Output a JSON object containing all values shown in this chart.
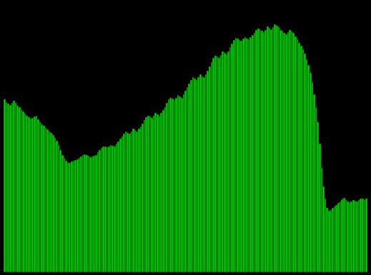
{
  "background_color": "#000000",
  "bar_color": "#00CC00",
  "bar_edge_color": "#000000",
  "ylim": [
    0,
    4400000
  ],
  "values": [
    2820000,
    2780000,
    2750000,
    2730000,
    2760000,
    2800000,
    2760000,
    2720000,
    2690000,
    2650000,
    2620000,
    2590000,
    2560000,
    2530000,
    2510000,
    2520000,
    2540000,
    2560000,
    2500000,
    2450000,
    2420000,
    2390000,
    2360000,
    2330000,
    2300000,
    2270000,
    2240000,
    2200000,
    2150000,
    2080000,
    2000000,
    1920000,
    1860000,
    1820000,
    1800000,
    1790000,
    1810000,
    1820000,
    1830000,
    1850000,
    1870000,
    1890000,
    1910000,
    1930000,
    1920000,
    1900000,
    1880000,
    1890000,
    1900000,
    1920000,
    1960000,
    2000000,
    2030000,
    2060000,
    2050000,
    2040000,
    2060000,
    2080000,
    2070000,
    2060000,
    2100000,
    2140000,
    2180000,
    2220000,
    2260000,
    2300000,
    2280000,
    2260000,
    2300000,
    2340000,
    2320000,
    2300000,
    2340000,
    2380000,
    2430000,
    2480000,
    2530000,
    2560000,
    2540000,
    2520000,
    2560000,
    2600000,
    2580000,
    2560000,
    2600000,
    2650000,
    2700000,
    2760000,
    2820000,
    2850000,
    2830000,
    2810000,
    2850000,
    2890000,
    2870000,
    2850000,
    2900000,
    2960000,
    3020000,
    3080000,
    3140000,
    3180000,
    3160000,
    3140000,
    3180000,
    3230000,
    3200000,
    3180000,
    3230000,
    3290000,
    3360000,
    3430000,
    3500000,
    3540000,
    3520000,
    3500000,
    3550000,
    3600000,
    3580000,
    3560000,
    3610000,
    3670000,
    3730000,
    3790000,
    3830000,
    3810000,
    3790000,
    3780000,
    3810000,
    3840000,
    3820000,
    3800000,
    3840000,
    3870000,
    3910000,
    3950000,
    3980000,
    3960000,
    3940000,
    3920000,
    3960000,
    4010000,
    3990000,
    3970000,
    4000000,
    4050000,
    4020000,
    4000000,
    3960000,
    3940000,
    3910000,
    3890000,
    3920000,
    3950000,
    3930000,
    3910000,
    3850000,
    3800000,
    3750000,
    3700000,
    3640000,
    3570000,
    3480000,
    3380000,
    3250000,
    3100000,
    2900000,
    2700000,
    2450000,
    2100000,
    1700000,
    1400000,
    1200000,
    1050000,
    1000000,
    1020000,
    1050000,
    1080000,
    1100000,
    1130000,
    1160000,
    1190000,
    1210000,
    1180000,
    1160000,
    1140000,
    1160000,
    1180000,
    1170000,
    1160000,
    1180000,
    1200000,
    1200000,
    1180000,
    1200000
  ]
}
